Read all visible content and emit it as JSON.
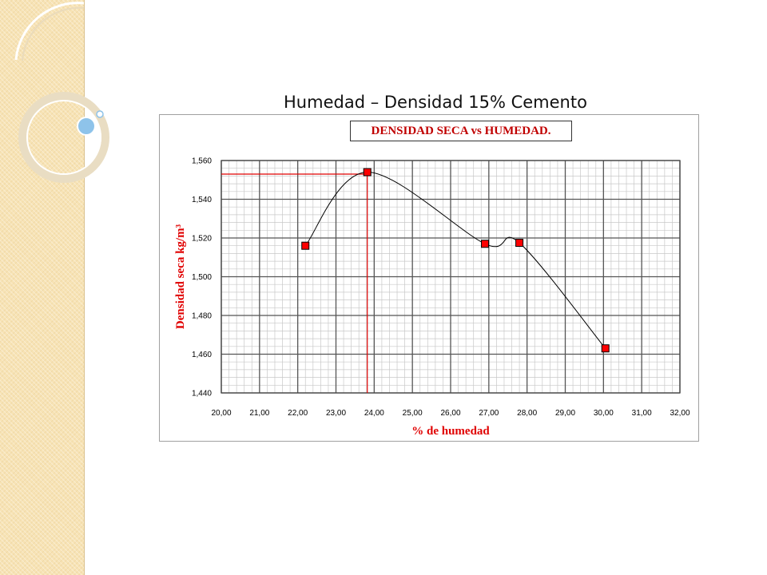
{
  "slide": {
    "title": "Humedad – Densidad 15% Cemento"
  },
  "chart_data": {
    "type": "line",
    "title": "DENSIDAD SECA vs HUMEDAD.",
    "xlabel": "% de humedad",
    "ylabel": "Densidad seca kg/m³",
    "xlim": [
      20,
      32
    ],
    "ylim": [
      1440,
      1560
    ],
    "x_ticks": [
      "20,00",
      "21,00",
      "22,00",
      "23,00",
      "24,00",
      "25,00",
      "26,00",
      "27,00",
      "28,00",
      "29,00",
      "30,00",
      "31,00",
      "32,00"
    ],
    "y_ticks": [
      "1,440",
      "1,460",
      "1,480",
      "1,500",
      "1,520",
      "1,540",
      "1,560"
    ],
    "grid": true,
    "legend": "none",
    "series": [
      {
        "color": "#ff0000",
        "curve_color": "#000000",
        "smooth": true,
        "points": [
          {
            "x": 22.2,
            "y": 1516
          },
          {
            "x": 23.82,
            "y": 1554
          },
          {
            "x": 26.9,
            "y": 1517
          },
          {
            "x": 27.8,
            "y": 1517.5
          },
          {
            "x": 30.05,
            "y": 1463
          }
        ]
      }
    ],
    "reference_lines": {
      "color": "#e00000",
      "optimum": {
        "x": 23.82,
        "y": 1553
      }
    }
  },
  "colors": {
    "accent": "#c00000",
    "marker": "#ff0000",
    "side_band": "#f7e3b5"
  }
}
